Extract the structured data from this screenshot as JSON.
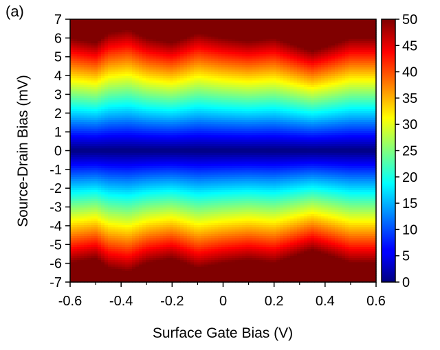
{
  "panel_label": "(a)",
  "chart_data": {
    "type": "heatmap",
    "xlabel": "Surface Gate Bias (V)",
    "ylabel": "Source-Drain Bias (mV)",
    "xlim": [
      -0.6,
      0.6
    ],
    "ylim": [
      -7,
      7
    ],
    "x_ticks": [
      "-0.6",
      "-0.4",
      "-0.2",
      "0",
      "0.2",
      "0.4",
      "0.6"
    ],
    "y_ticks": [
      "7",
      "6",
      "5",
      "4",
      "3",
      "2",
      "1",
      "0",
      "-1",
      "-2",
      "-3",
      "-4",
      "-5",
      "-6",
      "-7"
    ],
    "colorbar": {
      "min": 0,
      "max": 50,
      "ticks": [
        "50",
        "45",
        "40",
        "35",
        "30",
        "25",
        "20",
        "15",
        "10",
        "5",
        "0"
      ],
      "colormap": "jet"
    },
    "description_of_field": "Value grows with |Source-Drain Bias| (minimum ~0 at 0 mV, saturating at 50 near ±7 mV); bands are modulated periodically along Surface Gate Bias with a deeper dip near 0.35 V.",
    "x": [
      -0.6,
      -0.5,
      -0.45,
      -0.37,
      -0.3,
      -0.2,
      -0.1,
      0,
      0.1,
      0.2,
      0.27,
      0.35,
      0.45,
      0.5,
      0.6
    ],
    "band_modulation_mV": [
      0.0,
      -0.3,
      0.3,
      0.5,
      0.0,
      -0.3,
      0.3,
      0.0,
      -0.2,
      0.0,
      -0.4,
      -0.9,
      -0.3,
      0.0,
      0.0
    ],
    "value_scale_mV_at_50": 6.0
  }
}
